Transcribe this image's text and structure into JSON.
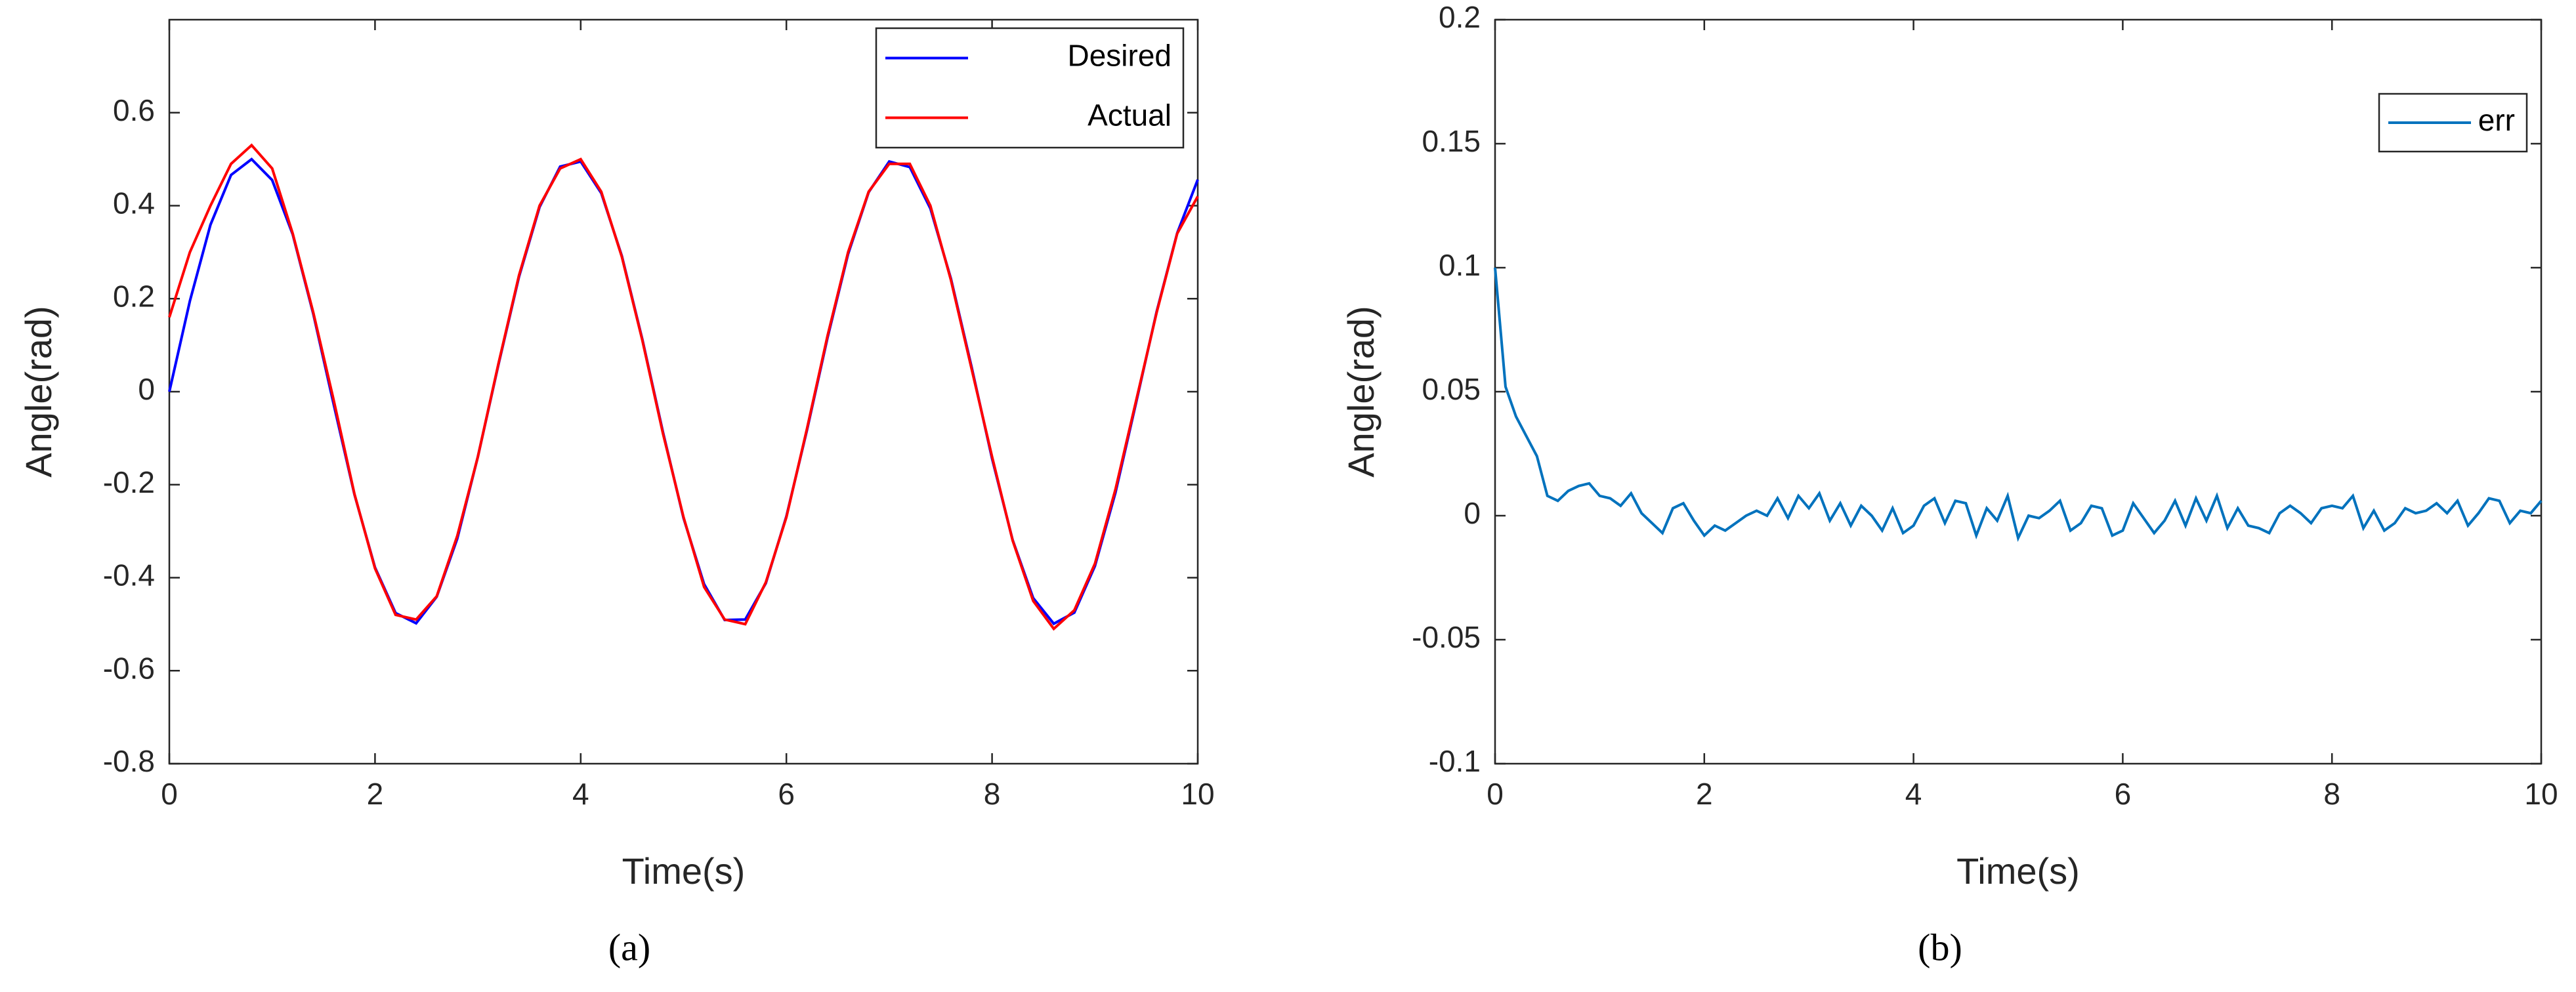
{
  "chart_data": [
    {
      "type": "line",
      "caption": "(a)",
      "xlabel": "Time(s)",
      "ylabel": "Angle(rad)",
      "x": [
        0,
        0.2,
        0.4,
        0.6,
        0.8,
        1,
        1.2,
        1.4,
        1.6,
        1.8,
        2,
        2.2,
        2.4,
        2.6,
        2.8,
        3,
        3.2,
        3.4,
        3.6,
        3.8,
        4,
        4.2,
        4.4,
        4.6,
        4.8,
        5,
        5.2,
        5.4,
        5.6,
        5.8,
        6,
        6.2,
        6.4,
        6.6,
        6.8,
        7,
        7.2,
        7.4,
        7.6,
        7.8,
        8,
        8.2,
        8.4,
        8.6,
        8.8,
        9,
        9.2,
        9.4,
        9.6,
        9.8,
        10
      ],
      "series": [
        {
          "name": "Desired",
          "color": "#0000ff",
          "values": [
            0,
            0.195,
            0.359,
            0.466,
            0.5,
            0.455,
            0.338,
            0.167,
            -0.029,
            -0.221,
            -0.378,
            -0.476,
            -0.498,
            -0.441,
            -0.316,
            -0.14,
            0.058,
            0.247,
            0.397,
            0.484,
            0.495,
            0.427,
            0.292,
            0.112,
            -0.087,
            -0.272,
            -0.414,
            -0.491,
            -0.49,
            -0.412,
            -0.268,
            -0.083,
            0.116,
            0.296,
            0.429,
            0.495,
            0.483,
            0.394,
            0.243,
            0.054,
            -0.144,
            -0.319,
            -0.444,
            -0.499,
            -0.475,
            -0.375,
            -0.217,
            -0.024,
            0.172,
            0.341,
            0.456
          ]
        },
        {
          "name": "Actual",
          "color": "#ff0000",
          "values": [
            0.16,
            0.3,
            0.4,
            0.49,
            0.53,
            0.48,
            0.34,
            0.17,
            -0.02,
            -0.22,
            -0.38,
            -0.48,
            -0.49,
            -0.44,
            -0.31,
            -0.14,
            0.06,
            0.25,
            0.4,
            0.48,
            0.5,
            0.43,
            0.29,
            0.11,
            -0.09,
            -0.27,
            -0.42,
            -0.49,
            -0.5,
            -0.41,
            -0.27,
            -0.08,
            0.12,
            0.3,
            0.43,
            0.49,
            0.49,
            0.4,
            0.24,
            0.05,
            -0.14,
            -0.32,
            -0.45,
            -0.51,
            -0.47,
            -0.37,
            -0.21,
            -0.02,
            0.17,
            0.34,
            0.42
          ]
        }
      ],
      "xlim": [
        0,
        10
      ],
      "xticks": [
        0,
        2,
        4,
        6,
        8,
        10
      ],
      "ylim": [
        -0.8,
        0.8
      ],
      "yticks": [
        -0.8,
        -0.6,
        -0.4,
        -0.2,
        0,
        0.2,
        0.4,
        0.6
      ],
      "legend": "northeast"
    },
    {
      "type": "line",
      "caption": "(b)",
      "xlabel": "Time(s)",
      "ylabel": "Angle(rad)",
      "x": [
        0,
        0.1,
        0.2,
        0.3,
        0.4,
        0.5,
        0.6,
        0.7,
        0.8,
        0.9,
        1,
        1.1,
        1.2,
        1.3,
        1.4,
        1.5,
        1.6,
        1.7,
        1.8,
        1.9,
        2,
        2.1,
        2.2,
        2.3,
        2.4,
        2.5,
        2.6,
        2.7,
        2.8,
        2.9,
        3,
        3.1,
        3.2,
        3.3,
        3.4,
        3.5,
        3.6,
        3.7,
        3.8,
        3.9,
        4,
        4.1,
        4.2,
        4.3,
        4.4,
        4.5,
        4.6,
        4.7,
        4.8,
        4.9,
        5,
        5.1,
        5.2,
        5.3,
        5.4,
        5.5,
        5.6,
        5.7,
        5.8,
        5.9,
        6,
        6.1,
        6.2,
        6.3,
        6.4,
        6.5,
        6.6,
        6.7,
        6.8,
        6.9,
        7,
        7.1,
        7.2,
        7.3,
        7.4,
        7.5,
        7.6,
        7.7,
        7.8,
        7.9,
        8,
        8.1,
        8.2,
        8.3,
        8.4,
        8.5,
        8.6,
        8.7,
        8.8,
        8.9,
        9,
        9.1,
        9.2,
        9.3,
        9.4,
        9.5,
        9.6,
        9.7,
        9.8,
        9.9,
        10
      ],
      "series": [
        {
          "name": "err",
          "color": "#0072bd",
          "values": [
            0.1,
            0.052,
            0.04,
            0.032,
            0.024,
            0.008,
            0.006,
            0.01,
            0.012,
            0.013,
            0.008,
            0.007,
            0.004,
            0.009,
            0.001,
            -0.003,
            -0.007,
            0.003,
            0.005,
            -0.002,
            -0.008,
            -0.004,
            -0.006,
            -0.003,
            0,
            0.002,
            0,
            0.007,
            -0.001,
            0.008,
            0.003,
            0.009,
            -0.002,
            0.005,
            -0.004,
            0.004,
            0,
            -0.006,
            0.003,
            -0.007,
            -0.004,
            0.004,
            0.007,
            -0.003,
            0.006,
            0.005,
            -0.008,
            0.003,
            -0.002,
            0.008,
            -0.009,
            0,
            -0.001,
            0.002,
            0.006,
            -0.006,
            -0.003,
            0.004,
            0.003,
            -0.008,
            -0.006,
            0.005,
            -0.001,
            -0.007,
            -0.002,
            0.006,
            -0.004,
            0.007,
            -0.002,
            0.008,
            -0.005,
            0.003,
            -0.004,
            -0.005,
            -0.007,
            0.001,
            0.004,
            0.001,
            -0.003,
            0.003,
            0.004,
            0.003,
            0.008,
            -0.005,
            0.002,
            -0.006,
            -0.003,
            0.003,
            0.001,
            0.002,
            0.005,
            0.001,
            0.006,
            -0.004,
            0.001,
            0.007,
            0.006,
            -0.003,
            0.002,
            0.001,
            0.006
          ]
        }
      ],
      "xlim": [
        0,
        10
      ],
      "xticks": [
        0,
        2,
        4,
        6,
        8,
        10
      ],
      "ylim": [
        -0.1,
        0.2
      ],
      "yticks": [
        -0.1,
        -0.05,
        0,
        0.05,
        0.1,
        0.15,
        0.2
      ],
      "legend": "northeast"
    }
  ]
}
